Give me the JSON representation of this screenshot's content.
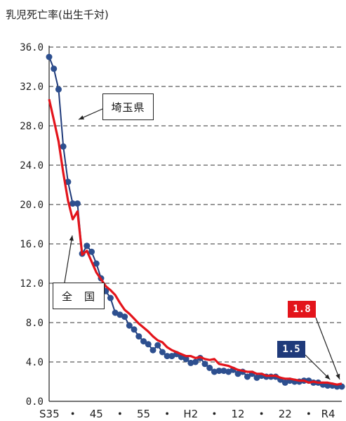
{
  "chart_data": {
    "type": "line",
    "title": "乳児死亡率(出生千対)",
    "xlabel": "",
    "ylabel": "",
    "ylim": [
      0,
      36
    ],
    "y_ticks": [
      "0.0",
      "4.0",
      "8.0",
      "12.0",
      "16.0",
      "20.0",
      "24.0",
      "28.0",
      "32.0",
      "36.0"
    ],
    "x_tick_labels": [
      "S35",
      "・",
      "45",
      "・",
      "55",
      "・",
      "H2",
      "・",
      "12",
      "・",
      "22",
      "・",
      "R4"
    ],
    "grid": "horizontal dashed",
    "x": [
      "S35",
      "S36",
      "S37",
      "S38",
      "S39",
      "S40",
      "S41",
      "S42",
      "S43",
      "S44",
      "S45",
      "S46",
      "S47",
      "S48",
      "S49",
      "S50",
      "S51",
      "S52",
      "S53",
      "S54",
      "S55",
      "S56",
      "S57",
      "S58",
      "S59",
      "S60",
      "S61",
      "S62",
      "S63",
      "H1",
      "H2",
      "H3",
      "H4",
      "H5",
      "H6",
      "H7",
      "H8",
      "H9",
      "H10",
      "H11",
      "H12",
      "H13",
      "H14",
      "H15",
      "H16",
      "H17",
      "H18",
      "H19",
      "H20",
      "H21",
      "H22",
      "H23",
      "H24",
      "H25",
      "H26",
      "H27",
      "H28",
      "H29",
      "H30",
      "R1",
      "R2",
      "R3",
      "R4"
    ],
    "series": [
      {
        "name": "埼玉県",
        "color": "#1f3a7a",
        "marker": "circle",
        "values": [
          35.0,
          33.8,
          31.7,
          25.9,
          22.3,
          20.1,
          20.1,
          15.0,
          15.8,
          15.2,
          14.0,
          12.5,
          11.2,
          10.5,
          9.0,
          8.8,
          8.6,
          7.7,
          7.3,
          6.6,
          6.1,
          5.8,
          5.2,
          5.7,
          5.0,
          4.6,
          4.6,
          4.8,
          4.5,
          4.3,
          3.9,
          4.0,
          4.4,
          3.8,
          3.4,
          3.0,
          3.1,
          3.1,
          3.0,
          3.2,
          2.8,
          3.0,
          2.5,
          2.8,
          2.4,
          2.6,
          2.5,
          2.5,
          2.5,
          2.2,
          1.9,
          2.1,
          2.0,
          2.0,
          2.1,
          2.1,
          1.9,
          1.9,
          1.7,
          1.6,
          1.6,
          1.5,
          1.5
        ]
      },
      {
        "name": "全　国",
        "color": "#e3141b",
        "marker": "none",
        "values": [
          30.7,
          28.6,
          26.4,
          23.2,
          20.4,
          18.5,
          19.3,
          14.9,
          15.3,
          14.2,
          13.1,
          12.4,
          11.7,
          11.3,
          10.8,
          10.0,
          9.3,
          8.9,
          8.4,
          7.9,
          7.5,
          7.1,
          6.6,
          6.2,
          6.0,
          5.5,
          5.2,
          5.0,
          4.8,
          4.6,
          4.6,
          4.4,
          4.5,
          4.3,
          4.2,
          4.3,
          3.8,
          3.7,
          3.6,
          3.4,
          3.2,
          3.1,
          3.0,
          3.0,
          2.8,
          2.8,
          2.6,
          2.6,
          2.6,
          2.4,
          2.3,
          2.3,
          2.2,
          2.1,
          2.1,
          1.9,
          2.0,
          1.9,
          1.9,
          1.9,
          1.8,
          1.7,
          1.8
        ]
      }
    ],
    "annotations": [
      {
        "text": "埼玉県",
        "series": "埼玉県"
      },
      {
        "text": "全　国",
        "series": "全　国"
      },
      {
        "text": "1.8",
        "series": "全　国",
        "color": "#e3141b"
      },
      {
        "text": "1.5",
        "series": "埼玉県",
        "color": "#1f3a7a"
      }
    ]
  }
}
